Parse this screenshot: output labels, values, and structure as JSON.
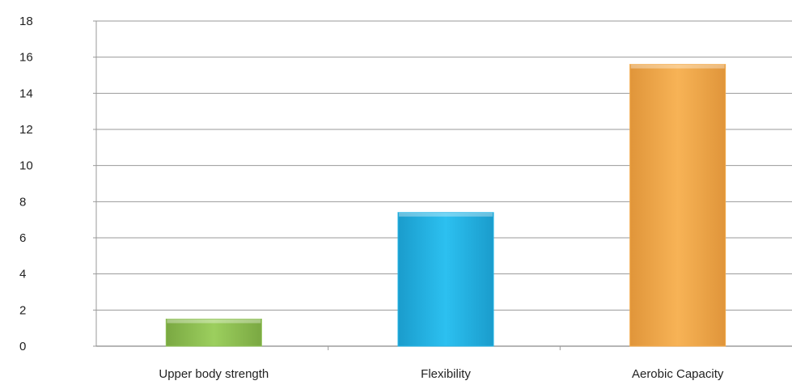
{
  "chart_data": {
    "type": "bar",
    "title": "",
    "xlabel": "",
    "ylabel": "",
    "categories": [
      "Upper body strength",
      "Flexibility",
      "Aerobic Capacity"
    ],
    "values": [
      1.5,
      7.4,
      15.6
    ],
    "ylim": [
      0,
      18
    ],
    "yticks": [
      0,
      2,
      4,
      6,
      8,
      10,
      12,
      14,
      16,
      18
    ],
    "grid": true,
    "legend": "none",
    "colors": [
      "#8cc152",
      "#22b4e6",
      "#f4aa4a"
    ]
  }
}
